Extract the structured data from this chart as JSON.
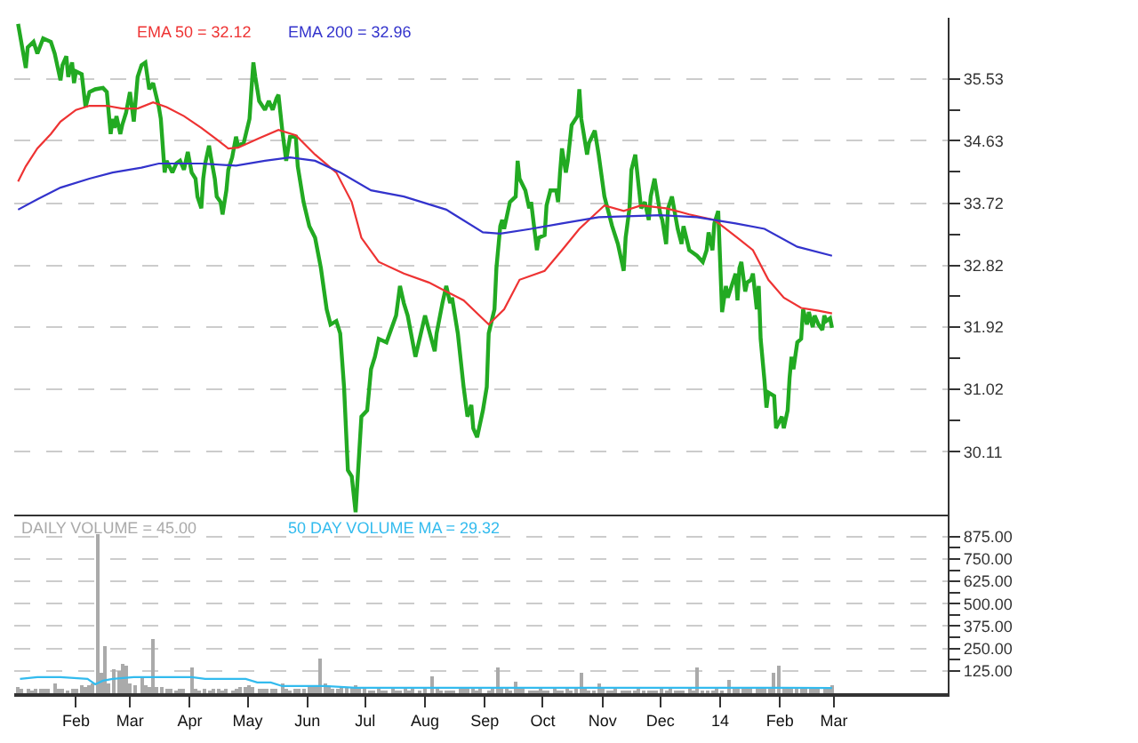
{
  "chart_data": [
    {
      "type": "line",
      "xlim": [
        "2012-12-31",
        "2014-04-29"
      ],
      "ylim": [
        29.2,
        36.42
      ],
      "yticks": [
        30.11,
        {
          "value": 30.56,
          "label": null
        },
        31.02,
        {
          "value": 31.47,
          "label": null
        },
        31.92,
        {
          "value": 32.37,
          "label": null
        },
        32.82,
        {
          "value": 33.27,
          "label": null
        },
        33.72,
        {
          "value": 34.18,
          "label": null
        },
        34.63,
        {
          "value": 35.08,
          "label": null
        },
        35.53
      ],
      "grid": "y",
      "legend": false,
      "tick_labels": "y",
      "x": [
        "2013-01-02",
        "2013-01-06",
        "2013-01-07",
        "2013-01-10",
        "2013-01-12",
        "2013-01-15",
        "2013-01-19",
        "2013-01-21",
        "2013-01-24",
        "2013-01-25",
        "2013-01-27",
        "2013-01-28",
        "2013-01-30",
        "2013-01-31",
        "2013-02-01",
        "2013-02-04",
        "2013-02-06",
        "2013-02-08",
        "2013-02-11",
        "2013-02-15",
        "2013-02-17",
        "2013-02-19",
        "2013-02-20",
        "2013-02-21",
        "2013-02-22",
        "2013-02-24",
        "2013-02-25",
        "2013-02-27",
        "2013-03-01",
        "2013-03-03",
        "2013-03-05",
        "2013-03-07",
        "2013-03-09",
        "2013-03-11",
        "2013-03-13",
        "2013-03-16",
        "2013-03-17",
        "2013-03-19",
        "2013-03-20",
        "2013-03-23",
        "2013-03-25",
        "2013-03-27",
        "2013-03-29",
        "2013-03-31",
        "2013-04-02",
        "2013-04-04",
        "2013-04-05",
        "2013-04-07",
        "2013-04-08",
        "2013-04-09",
        "2013-04-11",
        "2013-04-12",
        "2013-04-14",
        "2013-04-15",
        "2013-04-17",
        "2013-04-18",
        "2013-04-20",
        "2013-04-21",
        "2013-04-23",
        "2013-04-25",
        "2013-04-26",
        "2013-04-29",
        "2013-05-02",
        "2013-05-03",
        "2013-05-04",
        "2013-05-05",
        "2013-05-07",
        "2013-05-10",
        "2013-05-12",
        "2013-05-14",
        "2013-05-16",
        "2013-05-17",
        "2013-05-19",
        "2013-05-21",
        "2013-05-23",
        "2013-05-26",
        "2013-05-27",
        "2013-05-30",
        "2013-06-02",
        "2013-06-05",
        "2013-06-08",
        "2013-06-11",
        "2013-06-13",
        "2013-06-16",
        "2013-06-18",
        "2013-06-20",
        "2013-06-22",
        "2013-06-24",
        "2013-06-26",
        "2013-06-29",
        "2013-07-02",
        "2013-07-04",
        "2013-07-06",
        "2013-07-08",
        "2013-07-12",
        "2013-07-17",
        "2013-07-19",
        "2013-07-21",
        "2013-07-23",
        "2013-07-27",
        "2013-08-01",
        "2013-08-03",
        "2013-08-06",
        "2013-08-07",
        "2013-08-10",
        "2013-08-12",
        "2013-08-14",
        "2013-08-15",
        "2013-08-18",
        "2013-08-21",
        "2013-08-23",
        "2013-08-25",
        "2013-08-26",
        "2013-08-28",
        "2013-08-31",
        "2013-09-02",
        "2013-09-03",
        "2013-09-06",
        "2013-09-07",
        "2013-09-09",
        "2013-09-10",
        "2013-09-11",
        "2013-09-14",
        "2013-09-17",
        "2013-09-18",
        "2013-09-19",
        "2013-09-22",
        "2013-09-24",
        "2013-09-25",
        "2013-09-28",
        "2013-09-29",
        "2013-10-02",
        "2013-10-03",
        "2013-10-05",
        "2013-10-08",
        "2013-10-09",
        "2013-10-10",
        "2013-10-11",
        "2013-10-13",
        "2013-10-14",
        "2013-10-16",
        "2013-10-19",
        "2013-10-20",
        "2013-10-21",
        "2013-10-22",
        "2013-10-24",
        "2013-10-25",
        "2013-10-28",
        "2013-10-30",
        "2013-11-02",
        "2013-11-06",
        "2013-11-09",
        "2013-11-12",
        "2013-11-13",
        "2013-11-15",
        "2013-11-16",
        "2013-11-18",
        "2013-11-20",
        "2013-11-21",
        "2013-11-23",
        "2013-11-25",
        "2013-11-26",
        "2013-11-28",
        "2013-12-01",
        "2013-12-02",
        "2013-12-04",
        "2013-12-05",
        "2013-12-07",
        "2013-12-10",
        "2013-12-12",
        "2013-12-13",
        "2013-12-16",
        "2013-12-20",
        "2013-12-23",
        "2013-12-25",
        "2013-12-26",
        "2013-12-28",
        "2013-12-29",
        "2013-12-31",
        "2014-01-02",
        "2014-01-04",
        "2014-01-05",
        "2014-01-09",
        "2014-01-10",
        "2014-01-11",
        "2014-01-12",
        "2014-01-14",
        "2014-01-15",
        "2014-01-17",
        "2014-01-18",
        "2014-01-20",
        "2014-01-21",
        "2014-01-22",
        "2014-01-24",
        "2014-01-25",
        "2014-01-26",
        "2014-01-29",
        "2014-01-30",
        "2014-02-02",
        "2014-02-03",
        "2014-02-05",
        "2014-02-06",
        "2014-02-07",
        "2014-02-08",
        "2014-02-10",
        "2014-02-12",
        "2014-02-13",
        "2014-02-15",
        "2014-02-16",
        "2014-02-18",
        "2014-02-19",
        "2014-02-21",
        "2014-02-23",
        "2014-02-24",
        "2014-02-25",
        "2014-02-27",
        "2014-02-28"
      ],
      "series": [
        {
          "color": "#22aa22",
          "values": [
            36.33,
            35.69,
            35.99,
            36.07,
            35.9,
            36.12,
            36.07,
            35.9,
            35.51,
            35.73,
            35.86,
            35.56,
            35.77,
            35.47,
            35.64,
            35.6,
            35.12,
            35.34,
            35.38,
            35.4,
            35.34,
            34.73,
            34.95,
            34.82,
            34.99,
            34.73,
            34.86,
            35.04,
            35.34,
            34.91,
            35.56,
            35.73,
            35.77,
            35.38,
            35.47,
            35.12,
            34.95,
            34.17,
            34.34,
            34.17,
            34.3,
            34.34,
            34.21,
            34.47,
            34.17,
            34.08,
            33.82,
            33.65,
            34.08,
            34.3,
            34.56,
            34.39,
            34.08,
            33.82,
            33.74,
            33.56,
            33.91,
            34.21,
            34.39,
            34.69,
            34.56,
            34.6,
            34.95,
            35.38,
            35.77,
            35.56,
            35.21,
            35.08,
            35.21,
            35.08,
            35.25,
            35.3,
            34.78,
            34.34,
            34.69,
            34.69,
            34.26,
            33.74,
            33.39,
            33.22,
            32.78,
            32.18,
            31.96,
            32.01,
            31.83,
            31.05,
            29.84,
            29.75,
            29.23,
            30.62,
            30.71,
            31.31,
            31.49,
            31.75,
            31.7,
            32.09,
            32.52,
            32.27,
            32.09,
            31.49,
            32.09,
            31.88,
            31.57,
            31.83,
            32.27,
            32.52,
            32.27,
            32.35,
            31.83,
            31.05,
            30.62,
            30.79,
            30.45,
            30.32,
            30.71,
            31.05,
            31.83,
            32.18,
            32.78,
            33.39,
            33.48,
            33.35,
            33.74,
            33.82,
            34.34,
            34.08,
            33.91,
            33.65,
            33.74,
            33.04,
            33.22,
            33.26,
            33.69,
            33.91,
            33.91,
            33.74,
            34.17,
            34.52,
            34.17,
            34.34,
            34.86,
            34.99,
            35.38,
            34.95,
            34.78,
            34.43,
            34.6,
            34.78,
            34.43,
            33.82,
            33.39,
            33.13,
            32.74,
            33.22,
            33.65,
            34.21,
            34.43,
            33.91,
            33.65,
            33.74,
            33.48,
            33.82,
            34.08,
            33.56,
            33.48,
            33.13,
            33.65,
            33.82,
            33.35,
            33.13,
            33.39,
            33.04,
            32.96,
            32.87,
            33.04,
            33.3,
            33.04,
            33.43,
            33.61,
            32.14,
            32.52,
            32.35,
            32.7,
            32.31,
            32.78,
            32.87,
            32.44,
            32.57,
            32.61,
            32.7,
            32.18,
            32.52,
            31.75,
            31.14,
            30.75,
            30.97,
            30.92,
            30.45,
            30.62,
            30.45,
            30.71,
            31.18,
            31.49,
            31.31,
            31.7,
            31.75,
            32.18,
            31.96,
            32.14,
            31.92,
            32.09,
            31.96,
            31.88,
            32.09,
            32.01,
            32.05,
            31.91
          ]
        },
        {
          "name": "EMA 50 = 32.12",
          "color": "#ee3333",
          "x": [
            "2013-01-02",
            "2013-01-06",
            "2013-01-12",
            "2013-01-19",
            "2013-01-24",
            "2013-02-01",
            "2013-02-08",
            "2013-02-17",
            "2013-02-25",
            "2013-03-05",
            "2013-03-13",
            "2013-03-20",
            "2013-03-29",
            "2013-04-07",
            "2013-04-15",
            "2013-04-21",
            "2013-04-26",
            "2013-05-07",
            "2013-05-17",
            "2013-05-26",
            "2013-06-05",
            "2013-06-16",
            "2013-06-24",
            "2013-06-29",
            "2013-07-08",
            "2013-07-21",
            "2013-08-03",
            "2013-08-12",
            "2013-08-21",
            "2013-09-03",
            "2013-09-11",
            "2013-09-19",
            "2013-10-02",
            "2013-10-11",
            "2013-10-20",
            "2013-10-28",
            "2013-11-02",
            "2013-11-12",
            "2013-11-21",
            "2013-12-04",
            "2013-12-16",
            "2013-12-29",
            "2014-01-10",
            "2014-01-18",
            "2014-01-26",
            "2014-02-03",
            "2014-02-12",
            "2014-02-21",
            "2014-02-28"
          ],
          "values": [
            34.04,
            34.26,
            34.52,
            34.73,
            34.91,
            35.08,
            35.14,
            35.14,
            35.1,
            35.1,
            35.19,
            35.12,
            34.99,
            34.82,
            34.65,
            34.52,
            34.53,
            34.67,
            34.79,
            34.71,
            34.43,
            34.17,
            33.74,
            33.22,
            32.87,
            32.7,
            32.57,
            32.44,
            32.31,
            31.96,
            32.18,
            32.61,
            32.74,
            33.04,
            33.35,
            33.56,
            33.69,
            33.61,
            33.69,
            33.65,
            33.56,
            33.48,
            33.22,
            33.04,
            32.61,
            32.35,
            32.2,
            32.16,
            32.12
          ]
        },
        {
          "name": "EMA 200 = 32.96",
          "color": "#3333cc",
          "x": [
            "2013-01-02",
            "2013-01-12",
            "2013-01-24",
            "2013-02-08",
            "2013-02-20",
            "2013-03-07",
            "2013-03-16",
            "2013-04-07",
            "2013-04-25",
            "2013-05-10",
            "2013-05-23",
            "2013-06-05",
            "2013-06-18",
            "2013-07-04",
            "2013-07-21",
            "2013-08-12",
            "2013-08-31",
            "2013-09-09",
            "2013-09-25",
            "2013-10-11",
            "2013-10-30",
            "2013-12-01",
            "2013-12-20",
            "2014-01-09",
            "2014-01-24",
            "2014-02-10",
            "2014-02-28"
          ],
          "values": [
            33.63,
            33.78,
            33.95,
            34.08,
            34.17,
            34.24,
            34.3,
            34.3,
            34.27,
            34.34,
            34.39,
            34.34,
            34.17,
            33.91,
            33.82,
            33.63,
            33.3,
            33.28,
            33.35,
            33.43,
            33.52,
            33.55,
            33.52,
            33.43,
            33.35,
            33.09,
            32.96
          ]
        }
      ]
    },
    {
      "type": "bar",
      "xlim": [
        "2012-12-31",
        "2014-04-29"
      ],
      "xticks": [
        {
          "value": "2013-02-01",
          "label": "Feb"
        },
        {
          "value": "2013-03-01",
          "label": "Mar"
        },
        {
          "value": "2013-04-01",
          "label": "Apr"
        },
        {
          "value": "2013-05-01",
          "label": "May"
        },
        {
          "value": "2013-06-01",
          "label": "Jun"
        },
        {
          "value": "2013-07-01",
          "label": "Jul"
        },
        {
          "value": "2013-08-01",
          "label": "Aug"
        },
        {
          "value": "2013-09-01",
          "label": "Sep"
        },
        {
          "value": "2013-10-01",
          "label": "Oct"
        },
        {
          "value": "2013-11-01",
          "label": "Nov"
        },
        {
          "value": "2013-12-01",
          "label": "Dec"
        },
        {
          "value": "2014-01-01",
          "label": "14"
        },
        {
          "value": "2014-02-01",
          "label": "Feb"
        },
        {
          "value": "2014-03-01",
          "label": "Mar"
        }
      ],
      "ylim": [
        0,
        1000
      ],
      "yticks": [
        {
          "value": 125,
          "label": "125.00"
        },
        {
          "value": 187.5,
          "label": null
        },
        {
          "value": 250,
          "label": "250.00"
        },
        {
          "value": 312.5,
          "label": null
        },
        {
          "value": 375,
          "label": "375.00"
        },
        {
          "value": 437.5,
          "label": null
        },
        {
          "value": 500,
          "label": "500.00"
        },
        {
          "value": 562.5,
          "label": null
        },
        {
          "value": 625,
          "label": "625.00"
        },
        {
          "value": 687.5,
          "label": null
        },
        {
          "value": 750,
          "label": "750.00"
        },
        {
          "value": 812.5,
          "label": null
        },
        {
          "value": 875,
          "label": "875.00"
        }
      ],
      "grid": "y",
      "legend": false,
      "x": [
        "2013-01-02",
        "2013-01-04",
        "2013-01-07",
        "2013-01-09",
        "2013-01-11",
        "2013-01-14",
        "2013-01-16",
        "2013-01-18",
        "2013-01-21",
        "2013-01-23",
        "2013-01-25",
        "2013-01-28",
        "2013-01-30",
        "2013-02-01",
        "2013-02-04",
        "2013-02-06",
        "2013-02-08",
        "2013-02-10",
        "2013-02-12",
        "2013-02-14",
        "2013-02-16",
        "2013-02-18",
        "2013-02-21",
        "2013-02-23",
        "2013-02-25",
        "2013-02-27",
        "2013-03-01",
        "2013-03-04",
        "2013-03-07",
        "2013-03-09",
        "2013-03-11",
        "2013-03-13",
        "2013-03-15",
        "2013-03-18",
        "2013-03-20",
        "2013-03-22",
        "2013-03-25",
        "2013-03-27",
        "2013-03-29",
        "2013-04-02",
        "2013-04-04",
        "2013-04-06",
        "2013-04-09",
        "2013-04-11",
        "2013-04-13",
        "2013-04-16",
        "2013-04-18",
        "2013-04-20",
        "2013-04-23",
        "2013-04-25",
        "2013-04-27",
        "2013-04-30",
        "2013-05-02",
        "2013-05-04",
        "2013-05-07",
        "2013-05-09",
        "2013-05-11",
        "2013-05-14",
        "2013-05-16",
        "2013-05-19",
        "2013-05-21",
        "2013-05-23",
        "2013-05-26",
        "2013-05-28",
        "2013-05-30",
        "2013-06-02",
        "2013-06-04",
        "2013-06-06",
        "2013-06-08",
        "2013-06-10",
        "2013-06-12",
        "2013-06-14",
        "2013-06-17",
        "2013-06-19",
        "2013-06-21",
        "2013-06-24",
        "2013-06-26",
        "2013-06-28",
        "2013-07-01",
        "2013-07-03",
        "2013-07-05",
        "2013-07-08",
        "2013-07-10",
        "2013-07-12",
        "2013-07-15",
        "2013-07-17",
        "2013-07-19",
        "2013-07-22",
        "2013-07-24",
        "2013-07-26",
        "2013-07-29",
        "2013-08-01",
        "2013-08-05",
        "2013-08-07",
        "2013-08-09",
        "2013-08-12",
        "2013-08-14",
        "2013-08-16",
        "2013-08-19",
        "2013-08-21",
        "2013-08-23",
        "2013-08-26",
        "2013-08-28",
        "2013-08-30",
        "2013-09-03",
        "2013-09-05",
        "2013-09-08",
        "2013-09-10",
        "2013-09-12",
        "2013-09-14",
        "2013-09-17",
        "2013-09-19",
        "2013-09-21",
        "2013-09-24",
        "2013-09-26",
        "2013-09-28",
        "2013-09-30",
        "2013-10-02",
        "2013-10-04",
        "2013-10-07",
        "2013-10-09",
        "2013-10-11",
        "2013-10-14",
        "2013-10-16",
        "2013-10-18",
        "2013-10-21",
        "2013-10-23",
        "2013-10-25",
        "2013-10-28",
        "2013-10-30",
        "2013-11-01",
        "2013-11-04",
        "2013-11-06",
        "2013-11-08",
        "2013-11-11",
        "2013-11-13",
        "2013-11-15",
        "2013-11-18",
        "2013-11-20",
        "2013-11-22",
        "2013-11-25",
        "2013-11-27",
        "2013-11-29",
        "2013-12-02",
        "2013-12-04",
        "2013-12-06",
        "2013-12-09",
        "2013-12-11",
        "2013-12-13",
        "2013-12-16",
        "2013-12-18",
        "2013-12-20",
        "2013-12-23",
        "2013-12-26",
        "2013-12-28",
        "2013-12-30",
        "2014-01-02",
        "2014-01-06",
        "2014-01-08",
        "2014-01-10",
        "2014-01-13",
        "2014-01-15",
        "2014-01-17",
        "2014-01-20",
        "2014-01-22",
        "2014-01-24",
        "2014-01-27",
        "2014-01-29",
        "2014-01-31",
        "2014-02-03",
        "2014-02-05",
        "2014-02-07",
        "2014-02-10",
        "2014-02-12",
        "2014-02-14",
        "2014-02-17",
        "2014-02-19",
        "2014-02-21",
        "2014-02-24",
        "2014-02-26",
        "2014-02-28"
      ],
      "series": [
        {
          "name": "DAILY VOLUME = 45.00",
          "color": "#aaaaaa",
          "values": [
            40,
            30,
            30,
            20,
            30,
            30,
            30,
            30,
            60,
            30,
            30,
            20,
            30,
            30,
            50,
            40,
            50,
            60,
            890,
            120,
            270,
            60,
            140,
            130,
            170,
            160,
            60,
            50,
            100,
            50,
            40,
            300,
            40,
            40,
            30,
            30,
            20,
            30,
            30,
            150,
            30,
            20,
            30,
            20,
            30,
            30,
            20,
            30,
            20,
            30,
            40,
            40,
            50,
            40,
            30,
            30,
            30,
            30,
            30,
            60,
            30,
            20,
            30,
            30,
            30,
            40,
            40,
            40,
            200,
            60,
            40,
            30,
            30,
            40,
            40,
            40,
            50,
            30,
            30,
            20,
            20,
            30,
            20,
            20,
            30,
            20,
            20,
            30,
            20,
            30,
            20,
            30,
            100,
            30,
            20,
            20,
            20,
            20,
            30,
            30,
            30,
            30,
            20,
            30,
            20,
            30,
            150,
            30,
            30,
            20,
            70,
            30,
            30,
            20,
            20,
            20,
            30,
            20,
            20,
            30,
            20,
            20,
            30,
            20,
            30,
            120,
            30,
            20,
            20,
            60,
            30,
            20,
            20,
            30,
            20,
            20,
            20,
            20,
            30,
            20,
            20,
            20,
            20,
            30,
            20,
            30,
            20,
            20,
            20,
            30,
            20,
            150,
            20,
            20,
            20,
            30,
            20,
            80,
            30,
            30,
            30,
            30,
            30,
            30,
            30,
            40,
            40,
            120,
            160,
            40,
            40,
            40,
            30,
            30,
            30,
            30,
            30,
            30,
            30,
            30,
            45
          ]
        },
        {
          "name": "50 DAY VOLUME MA = 29.32",
          "type": "line",
          "color": "#33bbee",
          "x": [
            "2013-01-03",
            "2013-01-12",
            "2013-01-24",
            "2013-02-07",
            "2013-02-11",
            "2013-02-15",
            "2013-02-20",
            "2013-03-03",
            "2013-04-02",
            "2013-04-09",
            "2013-04-30",
            "2013-05-06",
            "2013-05-13",
            "2013-05-19",
            "2013-06-10",
            "2013-06-26",
            "2013-08-22",
            "2013-10-20",
            "2013-12-04",
            "2014-01-24",
            "2014-02-01",
            "2014-02-28"
          ],
          "values": [
            80,
            90,
            90,
            80,
            50,
            70,
            80,
            90,
            90,
            80,
            80,
            60,
            60,
            40,
            40,
            30,
            30,
            30,
            30,
            30,
            30,
            29.32
          ]
        }
      ]
    }
  ]
}
